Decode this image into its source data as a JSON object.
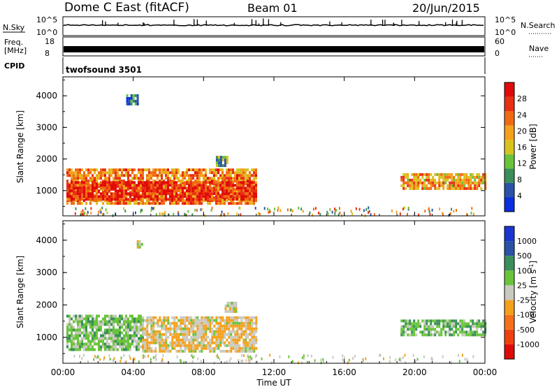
{
  "header": {
    "station": "Dome C East (fitACF)",
    "beam": "Beam 01",
    "date": "20/Jun/2015"
  },
  "params": {
    "nsky_label": "N.Sky",
    "nsky_top": "10^5",
    "nsky_bottom": "10^0",
    "nsearch_label": "N.Search",
    "nsearch_top": "10^5",
    "nsearch_bottom": "10^0",
    "freq_label_1": "Freq.",
    "freq_label_2": "[MHz]",
    "freq_top": "18",
    "freq_bottom": "8",
    "nave_label": "Nave",
    "nave_top": "60",
    "nave_bottom": "0",
    "cpid_label": "CPID",
    "cpid_value": "twofsound 3501"
  },
  "colors": {
    "power": [
      "#0a2ee0",
      "#2a52a8",
      "#3a8f5a",
      "#6ac43a",
      "#d9c21e",
      "#f5a01a",
      "#f06a12",
      "#e83012",
      "#e00a0a"
    ],
    "velocity": [
      "#e00a0a",
      "#f04010",
      "#f57018",
      "#f5a01a",
      "#c9c9c0",
      "#6ac43a",
      "#3a8f5a",
      "#2a52a8",
      "#1a36d0"
    ]
  },
  "chart_data": [
    {
      "type": "heatmap",
      "name": "power",
      "ylabel": "Slant Range [km]",
      "yticks": [
        "1000",
        "2000",
        "3000",
        "4000"
      ],
      "ylim": [
        200,
        4600
      ],
      "xlim": [
        0,
        24
      ],
      "colorbar_label": "Power [dB]",
      "colorbar_ticks": [
        "4",
        "8",
        "12",
        "16",
        "20",
        "24",
        "28"
      ],
      "colorbar_range": [
        0,
        32
      ],
      "regions": [
        {
          "t0": 0.2,
          "t1": 11.0,
          "r0": 600,
          "r1": 1700,
          "value": 22
        },
        {
          "t0": 0.2,
          "t1": 11.0,
          "r0": 750,
          "r1": 1300,
          "value": 28
        },
        {
          "t0": 19.2,
          "t1": 24.0,
          "r0": 1050,
          "r1": 1550,
          "value": 20
        },
        {
          "t0": 3.6,
          "t1": 4.2,
          "r0": 3750,
          "r1": 4050,
          "value": 8
        },
        {
          "t0": 8.7,
          "t1": 9.4,
          "r0": 1800,
          "r1": 2100,
          "value": 12
        }
      ]
    },
    {
      "type": "heatmap",
      "name": "velocity",
      "ylabel": "Slant Range [km]",
      "yticks": [
        "1000",
        "2000",
        "3000",
        "4000"
      ],
      "ylim": [
        200,
        4600
      ],
      "xlim": [
        0,
        24
      ],
      "xticks": [
        "00:00",
        "04:00",
        "08:00",
        "12:00",
        "16:00",
        "20:00",
        "00:00"
      ],
      "xlabel": "Time UT",
      "colorbar_label": "Velocity [m s^-1]",
      "colorbar_ticks": [
        "-1000",
        "-500",
        "-100",
        "-25",
        "25",
        "100",
        "500",
        "1000"
      ],
      "colorbar_range": [
        -1500,
        1500
      ],
      "regions": [
        {
          "t0": 0.2,
          "t1": 4.5,
          "r0": 650,
          "r1": 1700,
          "value": 300
        },
        {
          "t0": 4.5,
          "t1": 11.0,
          "r0": 600,
          "r1": 1650,
          "value": -120
        },
        {
          "t0": 19.2,
          "t1": 24.0,
          "r0": 1050,
          "r1": 1550,
          "value": 400
        },
        {
          "t0": 9.2,
          "t1": 9.8,
          "r0": 1800,
          "r1": 2100,
          "value": 0
        },
        {
          "t0": 4.2,
          "t1": 4.5,
          "r0": 3750,
          "r1": 4000,
          "value": 0
        }
      ]
    }
  ]
}
